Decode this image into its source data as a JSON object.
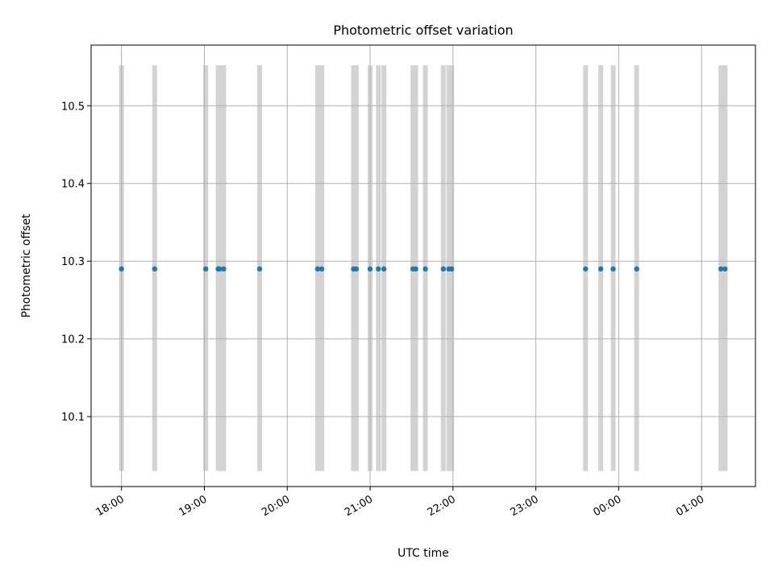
{
  "chart_data": {
    "type": "scatter",
    "title": "Photometric offset variation",
    "xlabel": "UTC time",
    "ylabel": "Photometric offset",
    "x_axis_type": "time",
    "xlim": [
      "17:38",
      "01:39"
    ],
    "ylim": [
      10.01,
      10.578
    ],
    "x_ticks": [
      "18:00",
      "19:00",
      "20:00",
      "21:00",
      "22:00",
      "23:00",
      "00:00",
      "01:00"
    ],
    "y_ticks": [
      10.1,
      10.2,
      10.3,
      10.4,
      10.5
    ],
    "grid": true,
    "legend": "none",
    "point_color": "#1f77b4",
    "band_color": "#d3d3d3",
    "band_y_range": [
      10.03,
      10.552
    ],
    "series": [
      {
        "x": [
          "18:00",
          "18:24",
          "19:01",
          "19:10",
          "19:11",
          "19:14",
          "19:40",
          "20:22",
          "20:25",
          "20:48",
          "20:50",
          "21:00",
          "21:06",
          "21:10",
          "21:31",
          "21:33",
          "21:40",
          "21:53",
          "21:57",
          "21:59",
          "23:36",
          "23:47",
          "23:56",
          "00:13",
          "01:14",
          "01:17"
        ],
        "y": [
          10.29,
          10.29,
          10.29,
          10.29,
          10.29,
          10.29,
          10.29,
          10.29,
          10.29,
          10.29,
          10.29,
          10.29,
          10.29,
          10.29,
          10.29,
          10.29,
          10.29,
          10.29,
          10.29,
          10.29,
          10.29,
          10.29,
          10.29,
          10.29,
          10.29,
          10.29
        ]
      }
    ]
  }
}
